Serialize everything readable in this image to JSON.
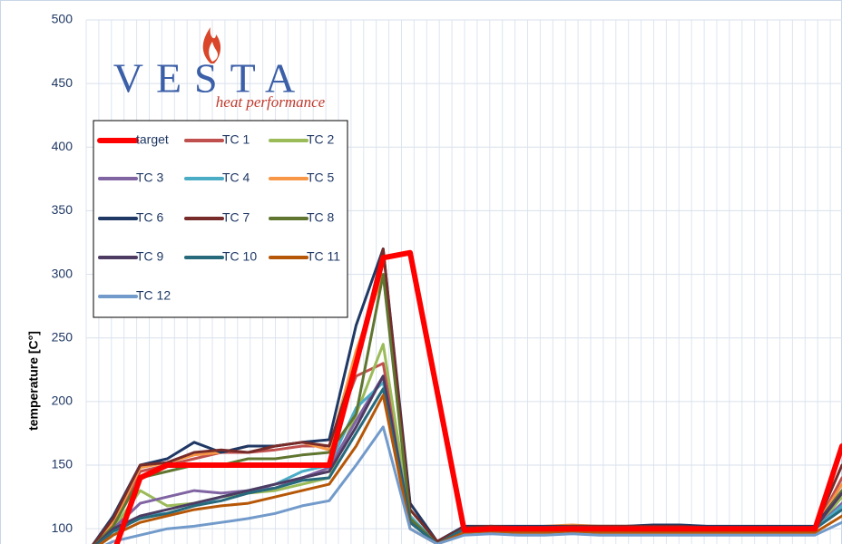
{
  "chart_data": {
    "type": "line",
    "y_label": "temperature [C°]",
    "logo_text": "VESTA",
    "logo_tagline": "heat performance",
    "categories": [
      null,
      null,
      null,
      null,
      null,
      null,
      null,
      null,
      null,
      null,
      null,
      null,
      null,
      null,
      null,
      null,
      null,
      null,
      null,
      null,
      null,
      null,
      null,
      null,
      null,
      null,
      null,
      null,
      null
    ],
    "ylim": [
      88,
      500
    ],
    "yticks": [
      100,
      150,
      200,
      250,
      300,
      350,
      400,
      450,
      500
    ],
    "grid": true,
    "legend": "upper left",
    "series": [
      {
        "name": "target",
        "color": "#ff0000",
        "values": [
          null,
          80,
          140,
          150,
          150,
          150,
          150,
          150,
          150,
          150,
          230,
          313,
          317,
          208,
          99,
          100,
          100,
          100,
          100,
          100,
          100,
          100,
          100,
          100,
          100,
          100,
          100,
          100,
          165
        ]
      },
      {
        "name": "TC 1",
        "color": "#c0504d",
        "values": [
          80,
          105,
          145,
          150,
          155,
          160,
          160,
          162,
          165,
          165,
          220,
          230,
          105,
          90,
          100,
          101,
          101,
          100,
          101,
          100,
          100,
          100,
          101,
          100,
          100,
          100,
          100,
          100,
          140
        ]
      },
      {
        "name": "TC 2",
        "color": "#9bbb59",
        "values": [
          80,
          100,
          130,
          118,
          120,
          125,
          128,
          130,
          135,
          140,
          190,
          245,
          110,
          88,
          98,
          99,
          99,
          100,
          99,
          99,
          100,
          99,
          99,
          98,
          99,
          99,
          99,
          99,
          125
        ]
      },
      {
        "name": "TC 3",
        "color": "#8064a2",
        "values": [
          80,
          100,
          120,
          125,
          130,
          128,
          130,
          132,
          140,
          148,
          185,
          220,
          108,
          88,
          99,
          100,
          100,
          100,
          100,
          99,
          100,
          100,
          100,
          99,
          100,
          100,
          100,
          100,
          120
        ]
      },
      {
        "name": "TC 4",
        "color": "#4bacc6",
        "values": [
          80,
          95,
          110,
          112,
          118,
          125,
          130,
          135,
          145,
          150,
          195,
          215,
          110,
          88,
          99,
          100,
          100,
          99,
          100,
          100,
          100,
          100,
          100,
          99,
          100,
          100,
          100,
          100,
          118
        ]
      },
      {
        "name": "TC 5",
        "color": "#f79646",
        "values": [
          80,
          105,
          148,
          152,
          158,
          160,
          165,
          165,
          168,
          162,
          240,
          300,
          120,
          90,
          101,
          102,
          101,
          102,
          103,
          102,
          102,
          102,
          101,
          101,
          101,
          101,
          101,
          101,
          135
        ]
      },
      {
        "name": "TC 6",
        "color": "#1f3864",
        "values": [
          80,
          110,
          150,
          155,
          168,
          160,
          165,
          165,
          168,
          170,
          260,
          320,
          120,
          90,
          102,
          102,
          102,
          102,
          102,
          102,
          102,
          103,
          103,
          102,
          102,
          102,
          102,
          102,
          130
        ]
      },
      {
        "name": "TC 7",
        "color": "#772c2a",
        "values": [
          80,
          108,
          150,
          152,
          160,
          162,
          160,
          165,
          168,
          165,
          230,
          320,
          115,
          90,
          101,
          102,
          101,
          101,
          102,
          102,
          102,
          102,
          102,
          101,
          101,
          101,
          101,
          101,
          150
        ]
      },
      {
        "name": "TC 8",
        "color": "#5f7530",
        "values": [
          80,
          102,
          140,
          145,
          150,
          150,
          155,
          155,
          158,
          160,
          190,
          300,
          108,
          88,
          100,
          101,
          100,
          101,
          101,
          101,
          101,
          101,
          101,
          100,
          100,
          100,
          100,
          100,
          130
        ]
      },
      {
        "name": "TC 9",
        "color": "#4d3b62",
        "values": [
          80,
          100,
          110,
          115,
          120,
          125,
          130,
          135,
          140,
          145,
          180,
          220,
          105,
          88,
          100,
          101,
          101,
          101,
          101,
          101,
          101,
          101,
          101,
          101,
          101,
          101,
          101,
          101,
          128
        ]
      },
      {
        "name": "TC 10",
        "color": "#276a7c",
        "values": [
          80,
          98,
          108,
          112,
          118,
          122,
          128,
          132,
          138,
          140,
          175,
          210,
          105,
          88,
          100,
          100,
          100,
          100,
          100,
          100,
          100,
          100,
          100,
          100,
          100,
          100,
          100,
          100,
          115
        ]
      },
      {
        "name": "TC 11",
        "color": "#b65708",
        "values": [
          80,
          95,
          105,
          110,
          115,
          118,
          120,
          125,
          130,
          135,
          165,
          205,
          100,
          88,
          97,
          98,
          97,
          97,
          98,
          97,
          97,
          97,
          97,
          97,
          97,
          97,
          97,
          97,
          110
        ]
      },
      {
        "name": "TC 12",
        "color": "#729aca",
        "values": [
          80,
          90,
          95,
          100,
          102,
          105,
          108,
          112,
          118,
          122,
          150,
          180,
          100,
          88,
          95,
          96,
          95,
          95,
          96,
          95,
          95,
          95,
          95,
          95,
          95,
          95,
          95,
          95,
          105
        ]
      }
    ]
  }
}
